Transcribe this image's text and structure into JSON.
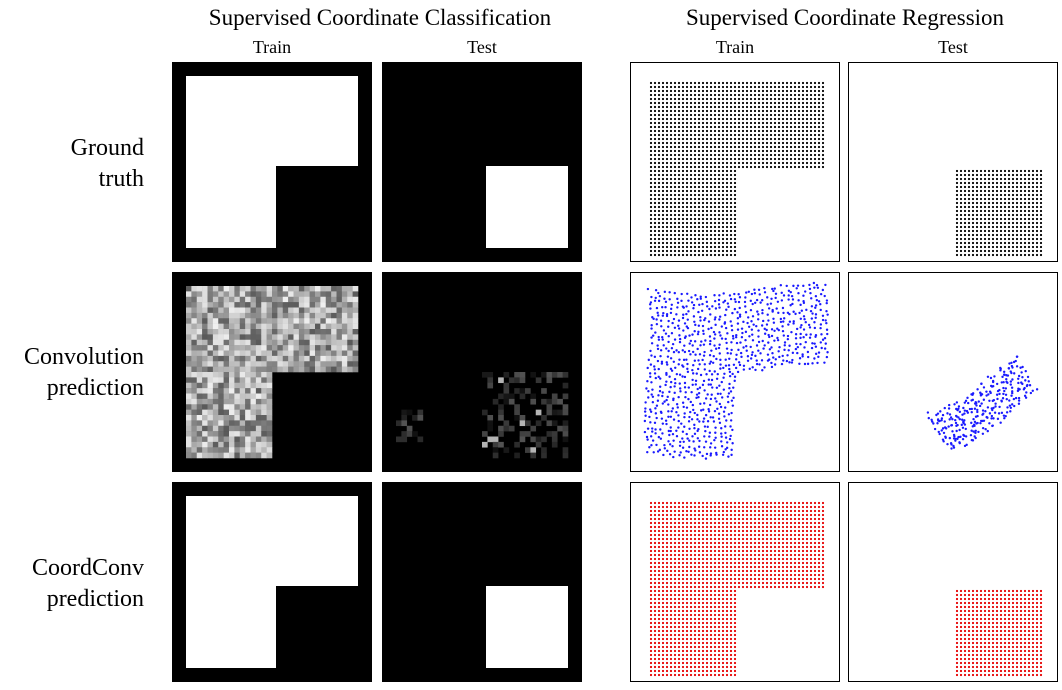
{
  "sections": {
    "classification": {
      "title": "Supervised Coordinate Classification"
    },
    "regression": {
      "title": "Supervised Coordinate Regression"
    }
  },
  "columns": {
    "train": "Train",
    "test": "Test"
  },
  "rows": [
    {
      "id": "ground-truth",
      "line1": "Ground",
      "line2": "truth"
    },
    {
      "id": "convolution",
      "line1": "Convolution",
      "line2": "prediction"
    },
    {
      "id": "coordconv",
      "line1": "CoordConv",
      "line2": "prediction"
    }
  ],
  "colors": {
    "background": "#000000",
    "foreground": "#ffffff",
    "ground_truth_points": "#000000",
    "convolution_points": "#1a1aff",
    "coordconv_points": "#e60000"
  }
}
